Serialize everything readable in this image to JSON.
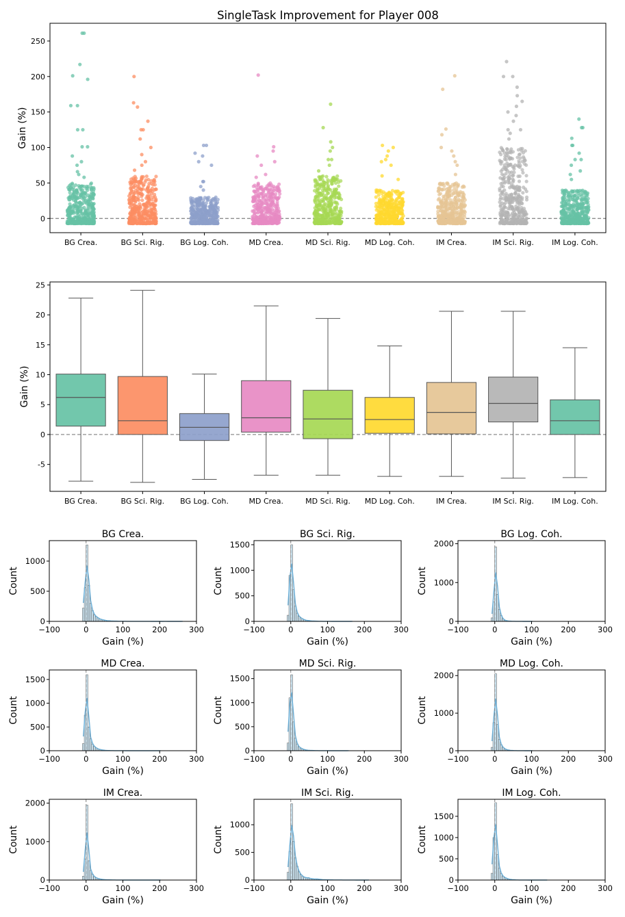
{
  "title": "SingleTask Improvement for Player 008",
  "categories": [
    "BG Crea.",
    "BG Sci. Rig.",
    "BG Log. Coh.",
    "MD Crea.",
    "MD Sci. Rig.",
    "MD Log. Coh.",
    "IM Crea.",
    "IM Sci. Rig.",
    "IM Log. Coh."
  ],
  "colors": [
    "#66c2a5",
    "#fc8d62",
    "#8da0cb",
    "#e78ac3",
    "#a6d854",
    "#ffd92f",
    "#e5c494",
    "#b3b3b3",
    "#66c2a5"
  ],
  "chart_data": [
    {
      "type": "scatter",
      "subtype": "strip",
      "title": "SingleTask Improvement for Player 008",
      "ylabel": "Gain (%)",
      "ylim": [
        -20,
        275
      ],
      "yticks": [
        0,
        50,
        100,
        150,
        200,
        250
      ],
      "reference_line_y": 0,
      "categories": [
        "BG Crea.",
        "BG Sci. Rig.",
        "BG Log. Coh.",
        "MD Crea.",
        "MD Sci. Rig.",
        "MD Log. Coh.",
        "IM Crea.",
        "IM Sci. Rig.",
        "IM Log. Coh."
      ],
      "series": [
        {
          "category": "BG Crea.",
          "min": -7,
          "max": 261,
          "dense_max": 50,
          "outliers": [
            261,
            261,
            217,
            201,
            196,
            159,
            159,
            125,
            125,
            101,
            101,
            88,
            80,
            75,
            66,
            62,
            58
          ]
        },
        {
          "category": "BG Sci. Rig.",
          "min": -7,
          "max": 200,
          "dense_max": 60,
          "outliers": [
            200,
            163,
            157,
            137,
            125,
            125,
            112,
            100,
            90,
            80,
            75,
            68
          ]
        },
        {
          "category": "BG Log. Coh.",
          "min": -7,
          "max": 103,
          "dense_max": 30,
          "outliers": [
            103,
            103,
            92,
            88,
            80,
            75,
            52,
            52,
            45,
            40
          ]
        },
        {
          "category": "MD Crea.",
          "min": -7,
          "max": 202,
          "dense_max": 50,
          "outliers": [
            202,
            101,
            95,
            88,
            80,
            75,
            62,
            58
          ]
        },
        {
          "category": "MD Sci. Rig.",
          "min": -7,
          "max": 161,
          "dense_max": 60,
          "outliers": [
            161,
            128,
            108,
            100,
            95,
            83,
            83,
            75,
            67
          ]
        },
        {
          "category": "MD Log. Coh.",
          "min": -7,
          "max": 103,
          "dense_max": 40,
          "outliers": [
            103,
            100,
            95,
            88,
            83,
            80,
            75,
            60,
            55
          ]
        },
        {
          "category": "IM Crea.",
          "min": -7,
          "max": 201,
          "dense_max": 50,
          "outliers": [
            201,
            182,
            126,
            118,
            100,
            95,
            88,
            80,
            75,
            62
          ]
        },
        {
          "category": "IM Sci. Rig.",
          "min": -7,
          "max": 221,
          "dense_max": 100,
          "outliers": [
            221,
            200,
            200,
            185,
            173,
            165,
            158,
            150,
            145,
            137,
            125,
            125,
            120,
            112
          ]
        },
        {
          "category": "IM Log. Coh.",
          "min": -7,
          "max": 140,
          "dense_max": 40,
          "outliers": [
            140,
            128,
            128,
            113,
            103,
            103,
            92,
            83,
            83,
            75,
            67,
            62,
            55
          ]
        }
      ]
    },
    {
      "type": "box",
      "ylabel": "Gain (%)",
      "ylim": [
        -9.5,
        25.5
      ],
      "yticks": [
        -5,
        0,
        5,
        10,
        15,
        20,
        25
      ],
      "reference_line_y": 0,
      "categories": [
        "BG Crea.",
        "BG Sci. Rig.",
        "BG Log. Coh.",
        "MD Crea.",
        "MD Sci. Rig.",
        "MD Log. Coh.",
        "IM Crea.",
        "IM Sci. Rig.",
        "IM Log. Coh."
      ],
      "series": [
        {
          "category": "BG Crea.",
          "whislo": -7.8,
          "q1": 1.4,
          "med": 6.2,
          "q3": 10.1,
          "whishi": 22.8
        },
        {
          "category": "BG Sci. Rig.",
          "whislo": -8.0,
          "q1": 0.0,
          "med": 2.3,
          "q3": 9.7,
          "whishi": 24.1
        },
        {
          "category": "BG Log. Coh.",
          "whislo": -7.5,
          "q1": -1.0,
          "med": 1.2,
          "q3": 3.5,
          "whishi": 10.1
        },
        {
          "category": "MD Crea.",
          "whislo": -6.8,
          "q1": 0.4,
          "med": 2.8,
          "q3": 9.0,
          "whishi": 21.5
        },
        {
          "category": "MD Sci. Rig.",
          "whislo": -6.8,
          "q1": -0.7,
          "med": 2.6,
          "q3": 7.4,
          "whishi": 19.4
        },
        {
          "category": "MD Log. Coh.",
          "whislo": -7.0,
          "q1": 0.2,
          "med": 2.5,
          "q3": 6.2,
          "whishi": 14.8
        },
        {
          "category": "IM Crea.",
          "whislo": -7.0,
          "q1": 0.1,
          "med": 3.7,
          "q3": 8.7,
          "whishi": 20.6
        },
        {
          "category": "IM Sci. Rig.",
          "whislo": -7.3,
          "q1": 2.1,
          "med": 5.2,
          "q3": 9.6,
          "whishi": 20.6
        },
        {
          "category": "IM Log. Coh.",
          "whislo": -7.2,
          "q1": 0.0,
          "med": 2.3,
          "q3": 5.8,
          "whishi": 14.5
        }
      ]
    },
    {
      "type": "bar",
      "subtype": "histogram",
      "xlabel": "Gain (%)",
      "ylabel": "Count",
      "xlim": [
        -100,
        300
      ],
      "xticks": [
        -100,
        0,
        100,
        200,
        300
      ],
      "bin_width": 5,
      "bin_start": -10,
      "reference_line_x": 0,
      "panels": [
        {
          "title": "BG Crea.",
          "ylim": [
            0,
            1340
          ],
          "yticks": [
            0,
            500,
            1000
          ],
          "counts": [
            220,
            560,
            1270,
            600,
            300,
            180,
            110,
            80,
            60,
            40,
            30,
            25,
            18,
            12,
            10,
            8,
            6,
            5,
            4,
            3,
            3,
            2,
            2,
            2,
            1,
            1,
            2,
            1,
            1,
            1,
            1,
            1,
            2,
            1,
            1,
            1,
            1,
            0,
            0,
            0,
            0,
            0,
            0,
            0,
            1,
            1,
            0,
            0,
            0,
            0,
            0,
            0,
            0,
            0,
            2
          ]
        },
        {
          "title": "BG Sci. Rig.",
          "ylim": [
            0,
            1580
          ],
          "yticks": [
            0,
            500,
            1000,
            1500
          ],
          "counts": [
            120,
            900,
            1500,
            620,
            300,
            160,
            100,
            70,
            50,
            30,
            20,
            18,
            12,
            8,
            6,
            5,
            4,
            3,
            2,
            2,
            1,
            1,
            1,
            1,
            0,
            1,
            0,
            1,
            0,
            0,
            0,
            0,
            0,
            0,
            0,
            1
          ]
        },
        {
          "title": "BG Log. Coh.",
          "ylim": [
            0,
            2080
          ],
          "yticks": [
            0,
            1000,
            2000
          ],
          "counts": [
            90,
            500,
            1920,
            700,
            310,
            150,
            60,
            30,
            15,
            10,
            6,
            4,
            3,
            2,
            1,
            1,
            1,
            1,
            0,
            0,
            0,
            1,
            1
          ]
        },
        {
          "title": "MD Crea.",
          "ylim": [
            0,
            1700
          ],
          "yticks": [
            0,
            500,
            1000,
            1500
          ],
          "counts": [
            150,
            750,
            1600,
            500,
            250,
            140,
            90,
            60,
            40,
            25,
            18,
            12,
            8,
            6,
            4,
            3,
            2,
            2,
            1,
            1,
            1,
            1,
            1,
            0,
            0,
            0,
            0,
            0,
            0,
            0,
            0,
            0,
            0,
            0,
            0,
            0,
            0,
            0,
            0,
            0,
            0,
            0,
            1
          ]
        },
        {
          "title": "MD Sci. Rig.",
          "ylim": [
            0,
            1680
          ],
          "yticks": [
            0,
            500,
            1000,
            1500
          ],
          "counts": [
            160,
            1100,
            1580,
            600,
            260,
            140,
            80,
            55,
            35,
            22,
            15,
            10,
            7,
            5,
            4,
            3,
            2,
            2,
            1,
            1,
            1,
            1,
            0,
            0,
            0,
            0,
            0,
            0,
            0,
            0,
            0,
            0,
            0,
            1
          ]
        },
        {
          "title": "MD Log. Coh.",
          "ylim": [
            0,
            2150
          ],
          "yticks": [
            0,
            1000,
            2000
          ],
          "counts": [
            90,
            750,
            2050,
            700,
            300,
            160,
            90,
            50,
            30,
            15,
            10,
            6,
            4,
            3,
            2,
            1,
            1,
            1,
            1,
            0,
            0,
            0,
            1
          ]
        },
        {
          "title": "IM Crea.",
          "ylim": [
            0,
            2100
          ],
          "yticks": [
            0,
            1000,
            2000
          ],
          "counts": [
            100,
            550,
            1950,
            500,
            250,
            150,
            90,
            60,
            40,
            30,
            20,
            15,
            10,
            8,
            6,
            5,
            4,
            3,
            2,
            2,
            1,
            1,
            1,
            0,
            0,
            0,
            0,
            0,
            0,
            0,
            0,
            0,
            0,
            0,
            0,
            0,
            0,
            0,
            0,
            0,
            0,
            0,
            1
          ]
        },
        {
          "title": "IM Sci. Rig.",
          "ylim": [
            0,
            1460
          ],
          "yticks": [
            0,
            500,
            1000
          ],
          "counts": [
            140,
            520,
            1380,
            700,
            400,
            250,
            150,
            100,
            70,
            50,
            40,
            45,
            30,
            25,
            20,
            18,
            20,
            15,
            10,
            8,
            6,
            5,
            5,
            4,
            3,
            3,
            2,
            2,
            2,
            2,
            2,
            1,
            1,
            1,
            1,
            1,
            1,
            0,
            0,
            0,
            0,
            0,
            0,
            0,
            1
          ]
        },
        {
          "title": "IM Log. Coh.",
          "ylim": [
            0,
            1900
          ],
          "yticks": [
            0,
            500,
            1000,
            1500
          ],
          "counts": [
            160,
            1000,
            1820,
            600,
            280,
            150,
            90,
            60,
            40,
            25,
            15,
            10,
            7,
            5,
            3,
            2,
            2,
            1,
            1,
            1,
            1,
            0,
            0,
            0,
            0,
            0,
            0,
            0,
            0,
            0,
            1
          ]
        }
      ]
    }
  ]
}
